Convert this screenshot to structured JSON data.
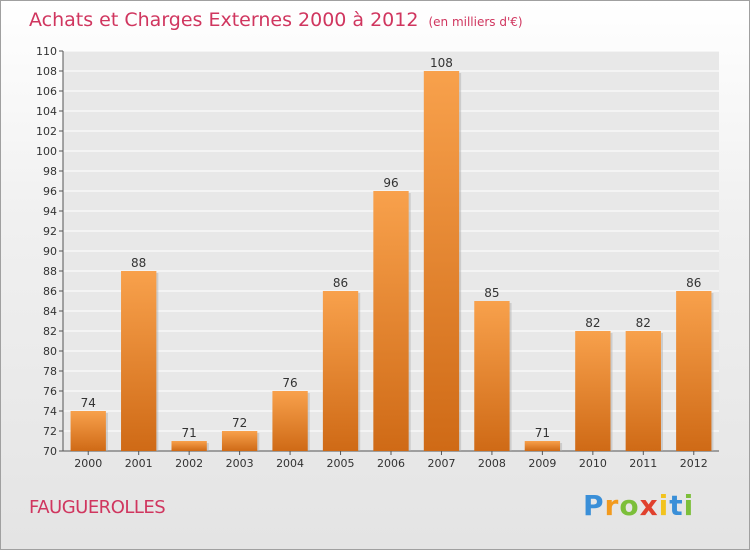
{
  "title": "Achats et Charges Externes 2000 à 2012",
  "subtitle": "(en milliers d'€)",
  "town": "FAUGUEROLLES",
  "logo": {
    "letters": [
      "P",
      "r",
      "o",
      "x",
      "i",
      "t",
      "i"
    ],
    "colors": [
      "#3a8fd8",
      "#f29a1e",
      "#7cbf3a",
      "#e0412e",
      "#f2c31e",
      "#3a8fd8",
      "#7cbf3a"
    ]
  },
  "chart_data": {
    "type": "bar",
    "categories": [
      "2000",
      "2001",
      "2002",
      "2003",
      "2004",
      "2005",
      "2006",
      "2007",
      "2008",
      "2009",
      "2010",
      "2011",
      "2012"
    ],
    "values": [
      74,
      88,
      71,
      72,
      76,
      86,
      96,
      108,
      85,
      71,
      82,
      82,
      86
    ],
    "data_labels": [
      "74",
      "88",
      "71",
      "72",
      "76",
      "86",
      "96",
      "108",
      "85",
      "71",
      "82",
      "82",
      "86"
    ],
    "ylim": [
      70,
      110
    ],
    "yticks": [
      70,
      72,
      74,
      76,
      78,
      80,
      82,
      84,
      86,
      88,
      90,
      92,
      94,
      96,
      98,
      100,
      102,
      104,
      106,
      108,
      110
    ],
    "grid": true,
    "bar_color_top": "#f8a14c",
    "bar_color_bottom": "#cf6a16"
  }
}
